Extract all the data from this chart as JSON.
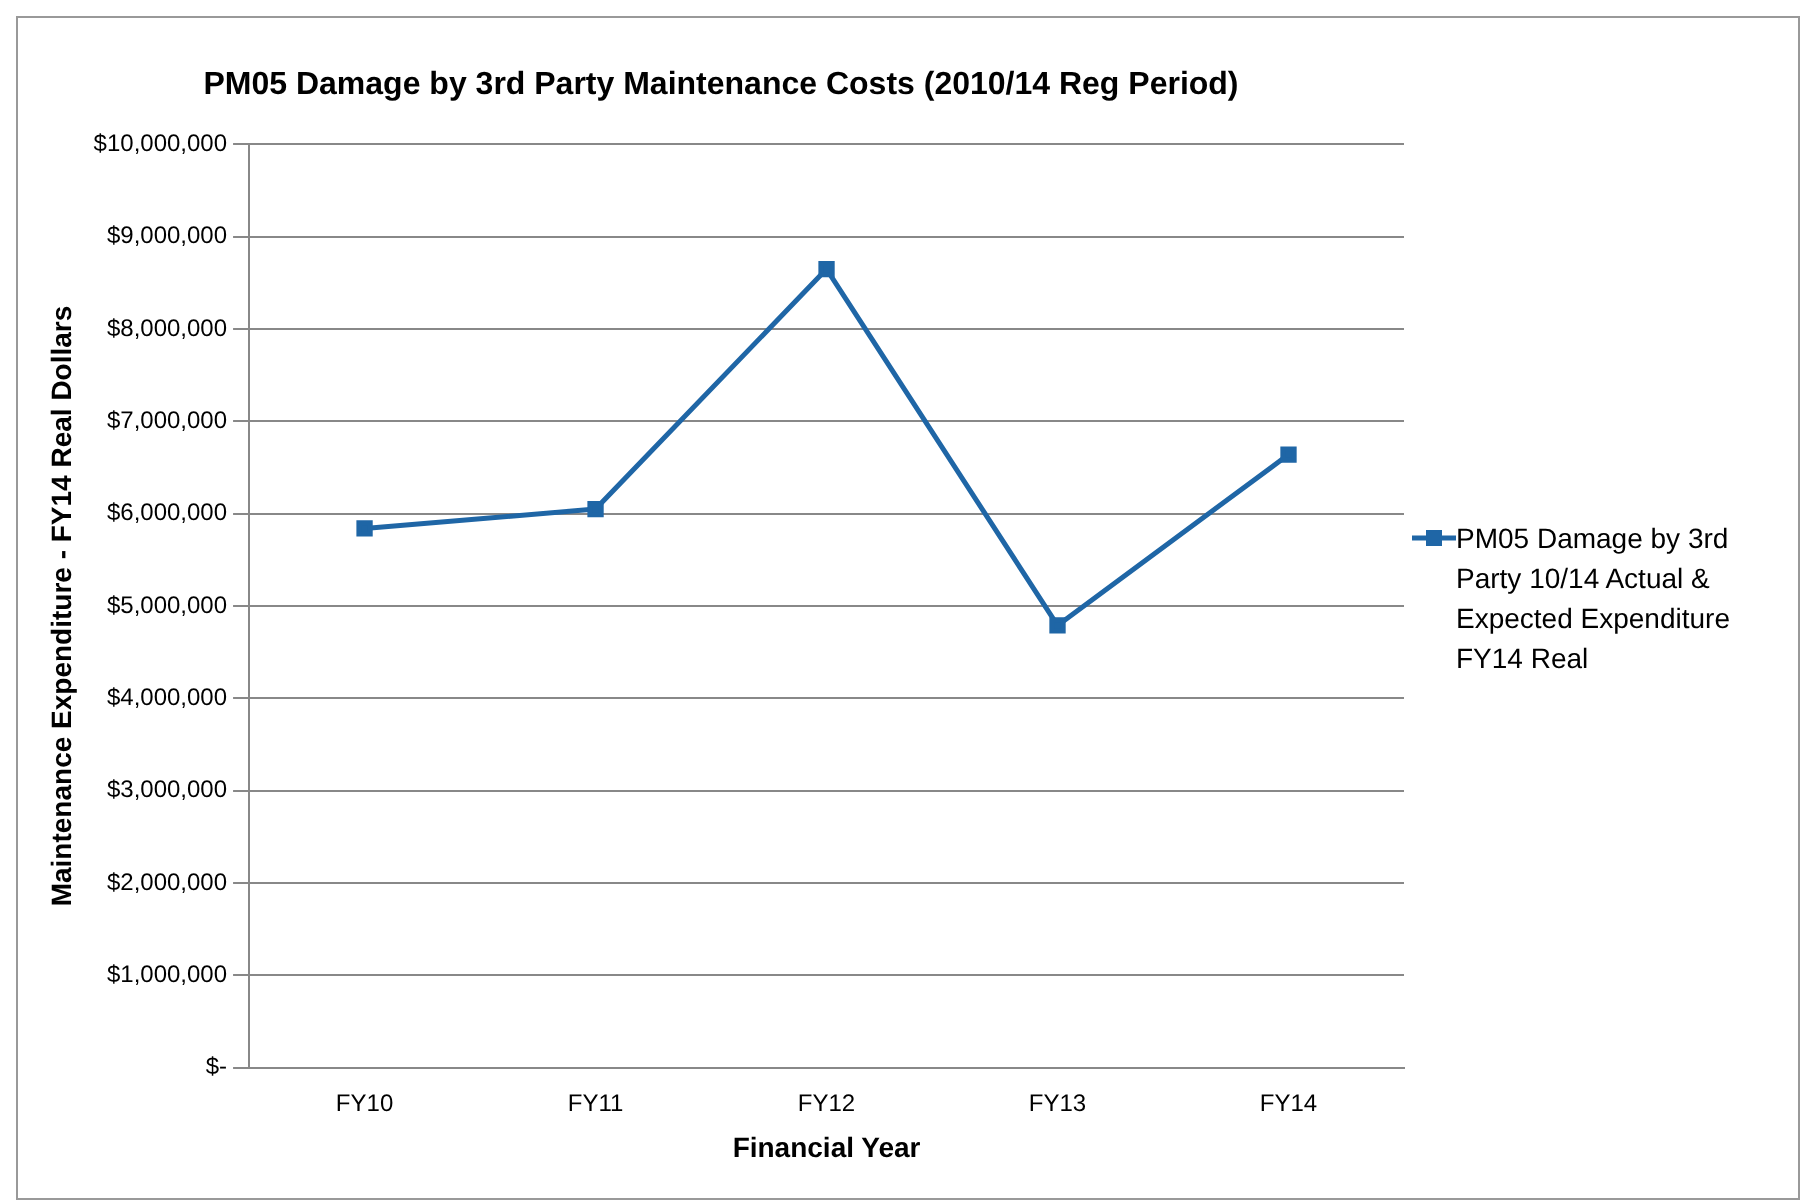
{
  "chart_data": {
    "type": "line",
    "title": "PM05 Damage by 3rd Party Maintenance Costs (2010/14 Reg Period)",
    "xlabel": "Financial Year",
    "ylabel": "Maintenance Expenditure - FY14 Real Dollars",
    "categories": [
      "FY10",
      "FY11",
      "FY12",
      "FY13",
      "FY14"
    ],
    "series": [
      {
        "name": "PM05 Damage by 3rd Party 10/14 Actual & Expected Expenditure FY14 Real",
        "color": "#1f66a6",
        "values": [
          5840000,
          6050000,
          8650000,
          4790000,
          6640000
        ]
      }
    ],
    "ylim": [
      0,
      10000000
    ],
    "yticks": [
      {
        "value": 0,
        "label": "$-"
      },
      {
        "value": 1000000,
        "label": "$1,000,000"
      },
      {
        "value": 2000000,
        "label": "$2,000,000"
      },
      {
        "value": 3000000,
        "label": "$3,000,000"
      },
      {
        "value": 4000000,
        "label": "$4,000,000"
      },
      {
        "value": 5000000,
        "label": "$5,000,000"
      },
      {
        "value": 6000000,
        "label": "$6,000,000"
      },
      {
        "value": 7000000,
        "label": "$7,000,000"
      },
      {
        "value": 8000000,
        "label": "$8,000,000"
      },
      {
        "value": 9000000,
        "label": "$9,000,000"
      },
      {
        "value": 10000000,
        "label": "$10,000,000"
      }
    ],
    "grid": "y",
    "legend": "right",
    "marker": "square",
    "line_style": "solid"
  }
}
